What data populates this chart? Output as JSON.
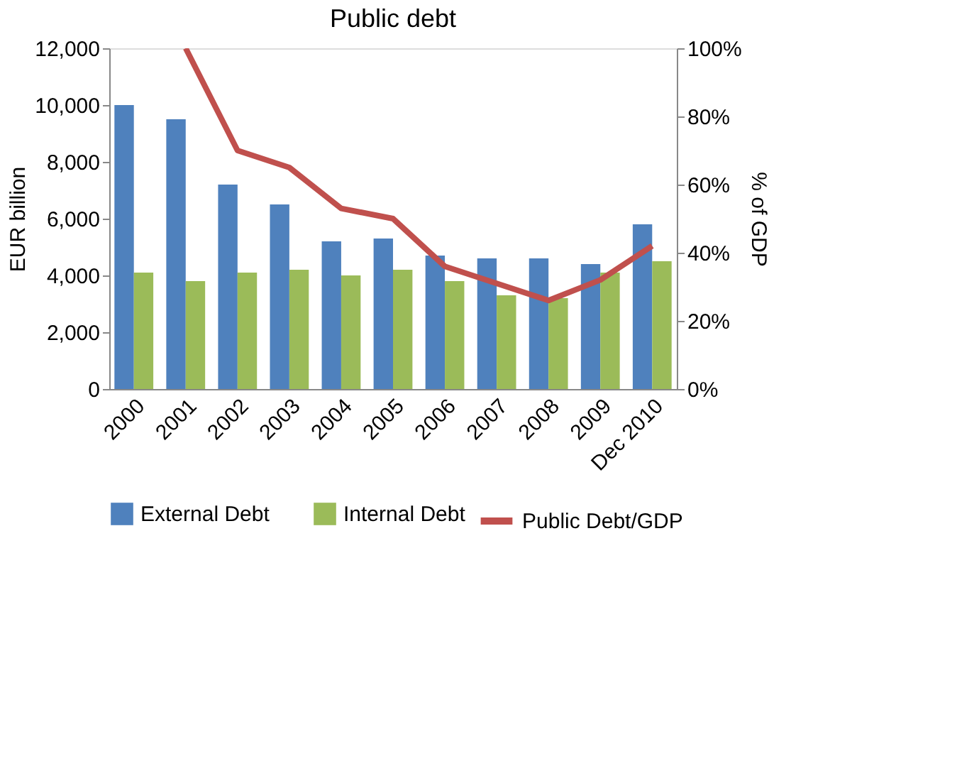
{
  "chart_data": {
    "type": "bar",
    "title": "Public debt",
    "ylabel": "EUR billion",
    "y2label": "% of GDP",
    "categories": [
      "2000",
      "2001",
      "2002",
      "2003",
      "2004",
      "2005",
      "2006",
      "2007",
      "2008",
      "2009",
      "Dec 2010"
    ],
    "series": [
      {
        "name": "External Debt",
        "color": "#4f81bd",
        "values": [
          10000,
          9500,
          7200,
          6500,
          5200,
          5300,
          4700,
          4600,
          4600,
          4400,
          5800
        ]
      },
      {
        "name": "Internal Debt",
        "color": "#9bbb59",
        "values": [
          4100,
          3800,
          4100,
          4200,
          4000,
          4200,
          3800,
          3300,
          3200,
          4100,
          4500
        ]
      },
      {
        "name": "Public Debt/GDP",
        "color": "#c0504d",
        "type": "line",
        "axis": "y2",
        "values": [
          null,
          100,
          70,
          65,
          53,
          50,
          36,
          31,
          26,
          32,
          42
        ]
      }
    ],
    "ylim": [
      0,
      12000
    ],
    "yticks": [
      {
        "value": 0,
        "label": "0"
      },
      {
        "value": 2000,
        "label": "2,000"
      },
      {
        "value": 4000,
        "label": "4,000"
      },
      {
        "value": 6000,
        "label": "6,000"
      },
      {
        "value": 8000,
        "label": "8,000"
      },
      {
        "value": 10000,
        "label": "10,000"
      },
      {
        "value": 12000,
        "label": "12,000"
      }
    ],
    "y2lim": [
      0,
      100
    ],
    "y2ticks": [
      {
        "value": 0,
        "label": "0%"
      },
      {
        "value": 20,
        "label": "20%"
      },
      {
        "value": 40,
        "label": "40%"
      },
      {
        "value": 60,
        "label": "60%"
      },
      {
        "value": 80,
        "label": "80%"
      },
      {
        "value": 100,
        "label": "100%"
      }
    ],
    "grid": false,
    "legend": "bottom"
  }
}
